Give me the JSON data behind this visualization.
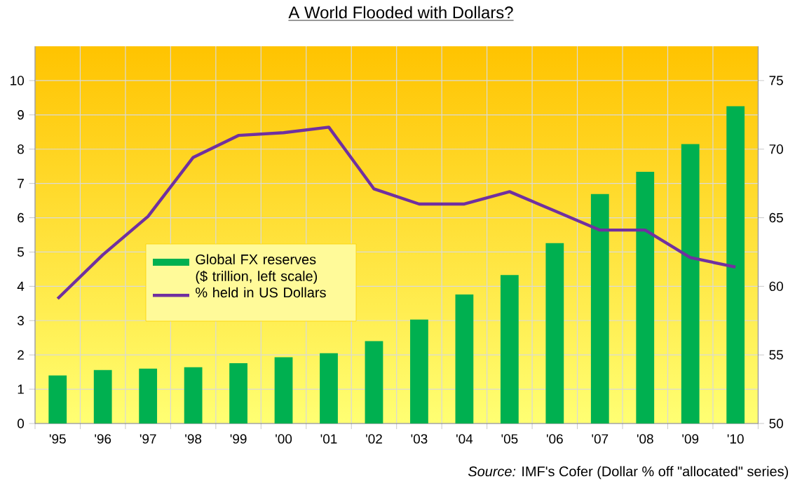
{
  "chart_data": {
    "type": "bar",
    "title": "A World Flooded with Dollars?",
    "categories": [
      "'95",
      "'96",
      "'97",
      "'98",
      "'99",
      "'00",
      "'01",
      "'02",
      "'03",
      "'04",
      "'05",
      "'06",
      "'07",
      "'08",
      "'09",
      "'10"
    ],
    "series": [
      {
        "name": "Global FX reserves ($ trillion, left scale)",
        "color": "#00b050",
        "values": [
          1.4,
          1.56,
          1.6,
          1.64,
          1.76,
          1.93,
          2.05,
          2.4,
          3.03,
          3.76,
          4.33,
          5.26,
          6.69,
          7.34,
          8.15,
          9.25
        ]
      },
      {
        "name": "% held in US Dollars",
        "type": "line",
        "axis": "y2",
        "color": "#7030a0",
        "values": [
          59.1,
          62.3,
          65.1,
          69.4,
          71.0,
          71.2,
          71.6,
          67.1,
          66.0,
          66.0,
          66.9,
          65.5,
          64.1,
          64.1,
          62.1,
          61.4
        ]
      }
    ],
    "ylim": [
      0,
      11
    ],
    "yticks": [
      0,
      1,
      2,
      3,
      4,
      5,
      6,
      7,
      8,
      9,
      10
    ],
    "y2lim": [
      50,
      77.5
    ],
    "y2ticks": [
      50,
      55,
      60,
      65,
      70,
      75
    ],
    "grid": true,
    "legend": "left",
    "annotations": [
      "*Source:* IMF's Cofer (Dollar % off \"allocated\" series)"
    ]
  }
}
